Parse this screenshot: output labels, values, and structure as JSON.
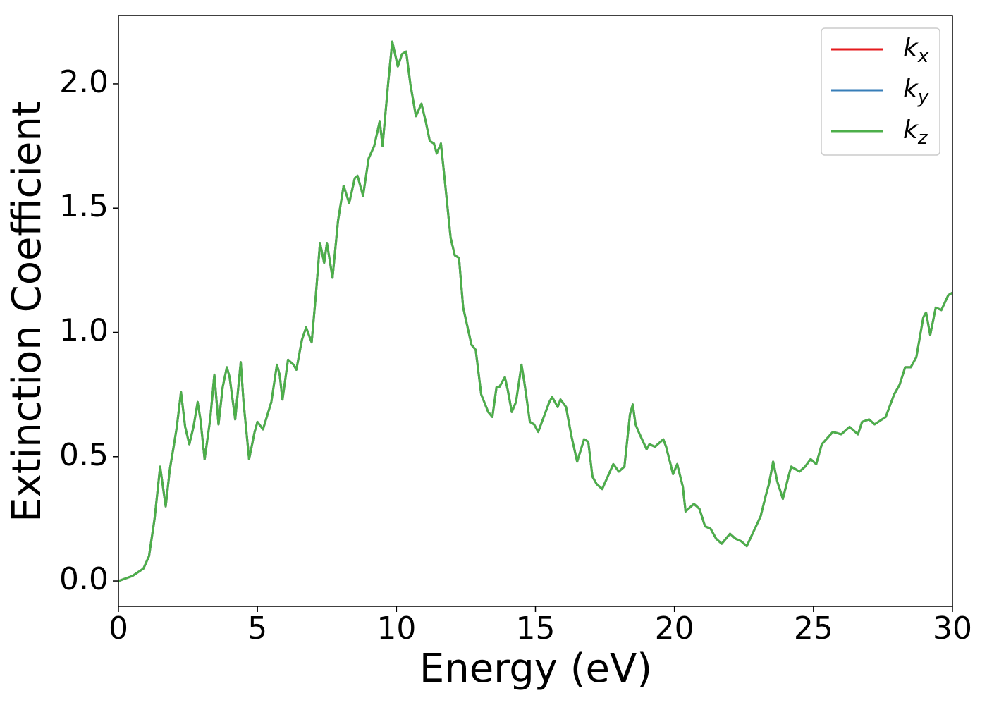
{
  "chart_data": {
    "type": "line",
    "xlabel": "Energy (eV)",
    "ylabel": "Extinction Coefficient",
    "x": [
      0,
      0.5,
      0.9,
      1.1,
      1.3,
      1.5,
      1.6,
      1.7,
      1.85,
      2.0,
      2.1,
      2.25,
      2.4,
      2.55,
      2.7,
      2.85,
      2.95,
      3.1,
      3.3,
      3.45,
      3.6,
      3.75,
      3.9,
      4.0,
      4.2,
      4.4,
      4.5,
      4.7,
      4.9,
      5.0,
      5.2,
      5.5,
      5.7,
      5.8,
      5.9,
      6.1,
      6.3,
      6.4,
      6.6,
      6.75,
      6.95,
      7.1,
      7.25,
      7.4,
      7.5,
      7.7,
      7.9,
      8.1,
      8.3,
      8.5,
      8.6,
      8.8,
      9.0,
      9.2,
      9.4,
      9.5,
      9.7,
      9.85,
      10.05,
      10.2,
      10.35,
      10.5,
      10.7,
      10.9,
      11.05,
      11.2,
      11.35,
      11.45,
      11.6,
      11.75,
      11.95,
      12.1,
      12.25,
      12.4,
      12.7,
      12.85,
      13.05,
      13.3,
      13.45,
      13.6,
      13.7,
      13.9,
      14.0,
      14.15,
      14.3,
      14.5,
      14.6,
      14.8,
      14.95,
      15.1,
      15.3,
      15.5,
      15.6,
      15.8,
      15.9,
      16.1,
      16.3,
      16.5,
      16.75,
      16.9,
      17.05,
      17.2,
      17.4,
      17.6,
      17.8,
      18.0,
      18.2,
      18.4,
      18.5,
      18.6,
      18.75,
      19.0,
      19.1,
      19.3,
      19.6,
      19.7,
      19.95,
      20.1,
      20.3,
      20.4,
      20.7,
      20.9,
      21.1,
      21.3,
      21.5,
      21.7,
      22.0,
      22.2,
      22.4,
      22.6,
      22.85,
      23.1,
      23.3,
      23.4,
      23.55,
      23.7,
      23.9,
      24.1,
      24.2,
      24.5,
      24.7,
      24.9,
      25.1,
      25.3,
      25.7,
      26.0,
      26.3,
      26.6,
      26.75,
      27.0,
      27.2,
      27.6,
      27.9,
      28.1,
      28.3,
      28.5,
      28.7,
      28.95,
      29.05,
      29.2,
      29.4,
      29.6,
      29.85,
      30.0
    ],
    "series": [
      {
        "name": "kx",
        "color": "#e41a1c",
        "values": [
          0.0,
          0.02,
          0.05,
          0.1,
          0.25,
          0.46,
          0.38,
          0.3,
          0.45,
          0.55,
          0.62,
          0.76,
          0.62,
          0.55,
          0.62,
          0.72,
          0.65,
          0.49,
          0.65,
          0.83,
          0.63,
          0.78,
          0.86,
          0.82,
          0.65,
          0.88,
          0.72,
          0.49,
          0.6,
          0.64,
          0.61,
          0.72,
          0.87,
          0.83,
          0.73,
          0.89,
          0.87,
          0.85,
          0.97,
          1.02,
          0.96,
          1.15,
          1.36,
          1.28,
          1.36,
          1.22,
          1.45,
          1.59,
          1.52,
          1.62,
          1.63,
          1.55,
          1.7,
          1.75,
          1.85,
          1.75,
          2.0,
          2.17,
          2.07,
          2.12,
          2.13,
          2.0,
          1.87,
          1.92,
          1.85,
          1.77,
          1.76,
          1.72,
          1.76,
          1.6,
          1.38,
          1.31,
          1.3,
          1.1,
          0.95,
          0.93,
          0.75,
          0.68,
          0.66,
          0.78,
          0.78,
          0.82,
          0.77,
          0.68,
          0.72,
          0.87,
          0.8,
          0.64,
          0.63,
          0.6,
          0.66,
          0.72,
          0.74,
          0.7,
          0.73,
          0.7,
          0.58,
          0.48,
          0.57,
          0.56,
          0.42,
          0.39,
          0.37,
          0.42,
          0.47,
          0.44,
          0.46,
          0.67,
          0.71,
          0.63,
          0.59,
          0.53,
          0.55,
          0.54,
          0.57,
          0.54,
          0.43,
          0.47,
          0.38,
          0.28,
          0.31,
          0.29,
          0.22,
          0.21,
          0.17,
          0.15,
          0.19,
          0.17,
          0.16,
          0.14,
          0.2,
          0.26,
          0.35,
          0.39,
          0.48,
          0.4,
          0.33,
          0.42,
          0.46,
          0.44,
          0.46,
          0.49,
          0.47,
          0.55,
          0.6,
          0.59,
          0.62,
          0.59,
          0.64,
          0.65,
          0.63,
          0.66,
          0.75,
          0.79,
          0.86,
          0.86,
          0.9,
          1.06,
          1.08,
          0.99,
          1.1,
          1.09,
          1.15,
          1.16
        ]
      },
      {
        "name": "ky",
        "color": "#377eb8",
        "values": [
          0.0,
          0.02,
          0.05,
          0.1,
          0.25,
          0.46,
          0.38,
          0.3,
          0.45,
          0.55,
          0.62,
          0.76,
          0.62,
          0.55,
          0.62,
          0.72,
          0.65,
          0.49,
          0.65,
          0.83,
          0.63,
          0.78,
          0.86,
          0.82,
          0.65,
          0.88,
          0.72,
          0.49,
          0.6,
          0.64,
          0.61,
          0.72,
          0.87,
          0.83,
          0.73,
          0.89,
          0.87,
          0.85,
          0.97,
          1.02,
          0.96,
          1.15,
          1.36,
          1.28,
          1.36,
          1.22,
          1.45,
          1.59,
          1.52,
          1.62,
          1.63,
          1.55,
          1.7,
          1.75,
          1.85,
          1.75,
          2.0,
          2.17,
          2.07,
          2.12,
          2.13,
          2.0,
          1.87,
          1.92,
          1.85,
          1.77,
          1.76,
          1.72,
          1.76,
          1.6,
          1.38,
          1.31,
          1.3,
          1.1,
          0.95,
          0.93,
          0.75,
          0.68,
          0.66,
          0.78,
          0.78,
          0.82,
          0.77,
          0.68,
          0.72,
          0.87,
          0.8,
          0.64,
          0.63,
          0.6,
          0.66,
          0.72,
          0.74,
          0.7,
          0.73,
          0.7,
          0.58,
          0.48,
          0.57,
          0.56,
          0.42,
          0.39,
          0.37,
          0.42,
          0.47,
          0.44,
          0.46,
          0.67,
          0.71,
          0.63,
          0.59,
          0.53,
          0.55,
          0.54,
          0.57,
          0.54,
          0.43,
          0.47,
          0.38,
          0.28,
          0.31,
          0.29,
          0.22,
          0.21,
          0.17,
          0.15,
          0.19,
          0.17,
          0.16,
          0.14,
          0.2,
          0.26,
          0.35,
          0.39,
          0.48,
          0.4,
          0.33,
          0.42,
          0.46,
          0.44,
          0.46,
          0.49,
          0.47,
          0.55,
          0.6,
          0.59,
          0.62,
          0.59,
          0.64,
          0.65,
          0.63,
          0.66,
          0.75,
          0.79,
          0.86,
          0.86,
          0.9,
          1.06,
          1.08,
          0.99,
          1.1,
          1.09,
          1.15,
          1.16
        ]
      },
      {
        "name": "kz",
        "color": "#4daf4a",
        "values": [
          0.0,
          0.02,
          0.05,
          0.1,
          0.25,
          0.46,
          0.38,
          0.3,
          0.45,
          0.55,
          0.62,
          0.76,
          0.62,
          0.55,
          0.62,
          0.72,
          0.65,
          0.49,
          0.65,
          0.83,
          0.63,
          0.78,
          0.86,
          0.82,
          0.65,
          0.88,
          0.72,
          0.49,
          0.6,
          0.64,
          0.61,
          0.72,
          0.87,
          0.83,
          0.73,
          0.89,
          0.87,
          0.85,
          0.97,
          1.02,
          0.96,
          1.15,
          1.36,
          1.28,
          1.36,
          1.22,
          1.45,
          1.59,
          1.52,
          1.62,
          1.63,
          1.55,
          1.7,
          1.75,
          1.85,
          1.75,
          2.0,
          2.17,
          2.07,
          2.12,
          2.13,
          2.0,
          1.87,
          1.92,
          1.85,
          1.77,
          1.76,
          1.72,
          1.76,
          1.6,
          1.38,
          1.31,
          1.3,
          1.1,
          0.95,
          0.93,
          0.75,
          0.68,
          0.66,
          0.78,
          0.78,
          0.82,
          0.77,
          0.68,
          0.72,
          0.87,
          0.8,
          0.64,
          0.63,
          0.6,
          0.66,
          0.72,
          0.74,
          0.7,
          0.73,
          0.7,
          0.58,
          0.48,
          0.57,
          0.56,
          0.42,
          0.39,
          0.37,
          0.42,
          0.47,
          0.44,
          0.46,
          0.67,
          0.71,
          0.63,
          0.59,
          0.53,
          0.55,
          0.54,
          0.57,
          0.54,
          0.43,
          0.47,
          0.38,
          0.28,
          0.31,
          0.29,
          0.22,
          0.21,
          0.17,
          0.15,
          0.19,
          0.17,
          0.16,
          0.14,
          0.2,
          0.26,
          0.35,
          0.39,
          0.48,
          0.4,
          0.33,
          0.42,
          0.46,
          0.44,
          0.46,
          0.49,
          0.47,
          0.55,
          0.6,
          0.59,
          0.62,
          0.59,
          0.64,
          0.65,
          0.63,
          0.66,
          0.75,
          0.79,
          0.86,
          0.86,
          0.9,
          1.06,
          1.08,
          0.99,
          1.1,
          1.09,
          1.15,
          1.16
        ]
      }
    ],
    "xlim": [
      0,
      30
    ],
    "xticks": [
      0,
      5,
      10,
      15,
      20,
      25,
      30
    ],
    "ylim": [
      -0.102,
      2.275
    ],
    "yticks": [
      {
        "value": 0,
        "label": "0.0"
      },
      0.5,
      {
        "value": 1,
        "label": "1.0"
      },
      1.5,
      {
        "value": 2,
        "label": "2.0"
      }
    ],
    "grid": false,
    "legend": "upper right"
  }
}
